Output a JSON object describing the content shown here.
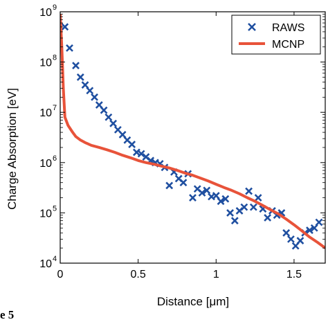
{
  "caption": "e 5",
  "chart_data": {
    "type": "scatter",
    "xlabel": "Distance [μm]",
    "ylabel": "Charge Absorption [eV]",
    "xlim": [
      0,
      1.7
    ],
    "ylim": [
      10000,
      1000000000
    ],
    "yscale": "log",
    "x_ticks": [
      0,
      0.5,
      1,
      1.5
    ],
    "x_tick_labels": [
      "0",
      "0.5",
      "1",
      "1.5"
    ],
    "y_ticks": [
      10000,
      100000,
      1000000,
      10000000,
      100000000,
      1000000000
    ],
    "y_tick_labels": [
      {
        "base": "10",
        "exp": "4"
      },
      {
        "base": "10",
        "exp": "5"
      },
      {
        "base": "10",
        "exp": "6"
      },
      {
        "base": "10",
        "exp": "7"
      },
      {
        "base": "10",
        "exp": "8"
      },
      {
        "base": "10",
        "exp": "9"
      }
    ],
    "grid": false,
    "legend_position": "top-right",
    "series": [
      {
        "name": "RAWS",
        "type": "scatter",
        "marker": "x",
        "color": "#1f4fa0",
        "x": [
          0.03,
          0.06,
          0.1,
          0.13,
          0.16,
          0.19,
          0.22,
          0.25,
          0.28,
          0.31,
          0.34,
          0.37,
          0.4,
          0.43,
          0.46,
          0.49,
          0.52,
          0.55,
          0.58,
          0.61,
          0.64,
          0.67,
          0.7,
          0.73,
          0.76,
          0.79,
          0.82,
          0.85,
          0.88,
          0.91,
          0.94,
          0.97,
          1.0,
          1.03,
          1.06,
          1.09,
          1.12,
          1.15,
          1.18,
          1.21,
          1.24,
          1.27,
          1.3,
          1.33,
          1.36,
          1.39,
          1.42,
          1.45,
          1.48,
          1.51,
          1.54,
          1.57,
          1.6,
          1.63,
          1.66
        ],
        "y": [
          500000000,
          190000000,
          85000000,
          50000000,
          35000000,
          27000000,
          20000000,
          14000000,
          11000000,
          8000000,
          6000000,
          4500000,
          3600000,
          2800000,
          2300000,
          1600000,
          1500000,
          1300000,
          1100000,
          1000000,
          950000,
          800000,
          350000,
          650000,
          480000,
          400000,
          600000,
          200000,
          300000,
          250000,
          280000,
          210000,
          220000,
          170000,
          190000,
          100000,
          70000,
          110000,
          130000,
          270000,
          130000,
          200000,
          120000,
          80000,
          110000,
          90000,
          100000,
          40000,
          30000,
          22000,
          28000,
          40000,
          45000,
          50000,
          65000
        ]
      },
      {
        "name": "MCNP",
        "type": "line",
        "color": "#e8533a",
        "x": [
          0.0,
          0.01,
          0.02,
          0.03,
          0.05,
          0.08,
          0.1,
          0.13,
          0.16,
          0.2,
          0.25,
          0.3,
          0.35,
          0.4,
          0.45,
          0.5,
          0.55,
          0.6,
          0.65,
          0.7,
          0.75,
          0.8,
          0.85,
          0.9,
          0.95,
          1.0,
          1.05,
          1.1,
          1.15,
          1.2,
          1.25,
          1.3,
          1.35,
          1.4,
          1.45,
          1.5,
          1.55,
          1.6,
          1.65,
          1.7
        ],
        "y": [
          900000000,
          200000000,
          30000000,
          8000000,
          5500000,
          4000000,
          3300000,
          2800000,
          2500000,
          2200000,
          2000000,
          1800000,
          1600000,
          1400000,
          1250000,
          1100000,
          1000000,
          930000,
          850000,
          780000,
          700000,
          620000,
          560000,
          490000,
          430000,
          370000,
          320000,
          280000,
          240000,
          200000,
          170000,
          140000,
          115000,
          95000,
          75000,
          58000,
          44000,
          33000,
          26000,
          20000
        ]
      }
    ]
  }
}
